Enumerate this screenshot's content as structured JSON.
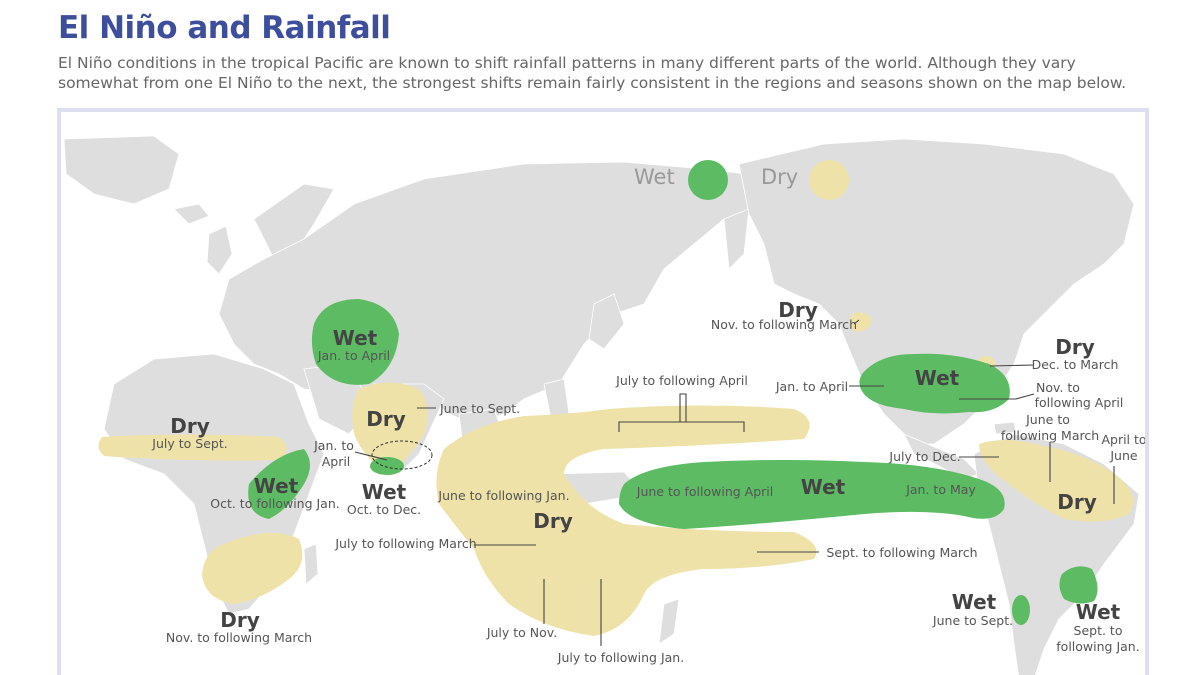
{
  "title": "El Niño and Rainfall",
  "intro": "El Niño conditions in the tropical Pacific are known to shift rainfall patterns in many different parts of the world. Although they vary somewhat from one El Niño to the next, the strongest shifts remain fairly consistent in the regions and seasons shown on the map below.",
  "legend": {
    "wet": "Wet",
    "dry": "Dry",
    "wet_color": "#5cbb63",
    "dry_color": "#efe2a8"
  },
  "regions": {
    "sw_asia": {
      "type": "Wet",
      "season": "Jan. to April"
    },
    "west_africa": {
      "type": "Dry",
      "season": "July to Sept."
    },
    "east_africa": {
      "type": "Wet",
      "season": "Oct. to following Jan."
    },
    "southern_africa": {
      "type": "Dry",
      "season": "Nov. to following March"
    },
    "india": {
      "type": "Dry",
      "season": "June to Sept."
    },
    "sri_lanka": {
      "type": "Wet",
      "season": "Oct. to Dec.",
      "season2": "Jan. to April"
    },
    "indonesia_australia": {
      "type": "Dry",
      "seasons": [
        "June to following Jan.",
        "July to following March",
        "July to Nov.",
        "July to following Jan."
      ]
    },
    "western_pacific": {
      "season": "July to following April"
    },
    "south_pacific": {
      "season": "Sept. to following March"
    },
    "central_pacific": {
      "type": "Wet",
      "season": "June to following April",
      "season2": "Jan. to May"
    },
    "alaska_canada": {
      "type": "Dry",
      "season": "Nov. to following March"
    },
    "southern_us": {
      "type": "Wet",
      "season": "Jan. to April",
      "season2": "Nov. to following April"
    },
    "ohio_valley": {
      "type": "Dry",
      "season": "Dec. to March"
    },
    "central_america": {
      "season": "July to Dec.",
      "season2": "June to following March"
    },
    "northern_s_america": {
      "type": "Dry",
      "season": "April to June"
    },
    "chile": {
      "type": "Wet",
      "season": "June to Sept."
    },
    "se_s_america": {
      "type": "Wet",
      "season": "Sept. to following Jan."
    }
  }
}
